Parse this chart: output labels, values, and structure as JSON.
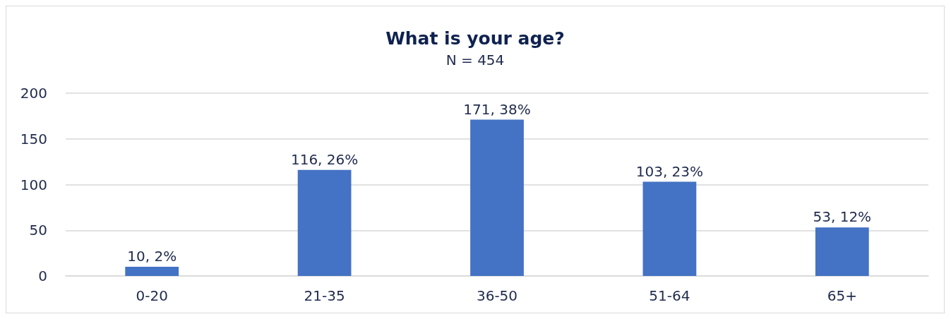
{
  "chart_data": {
    "type": "bar",
    "title": "What is your age?",
    "subtitle": "N = 454",
    "categories": [
      "0-20",
      "21-35",
      "36-50",
      "51-64",
      "65+"
    ],
    "values": [
      10,
      116,
      171,
      103,
      53
    ],
    "value_labels": [
      "10, 2%",
      "116, 26%",
      "171, 38%",
      "103, 23%",
      "53, 12%"
    ],
    "color": "#4472c4",
    "ylim": [
      0,
      200
    ],
    "yticks": [
      0,
      50,
      100,
      150,
      200
    ],
    "grid": "y"
  }
}
